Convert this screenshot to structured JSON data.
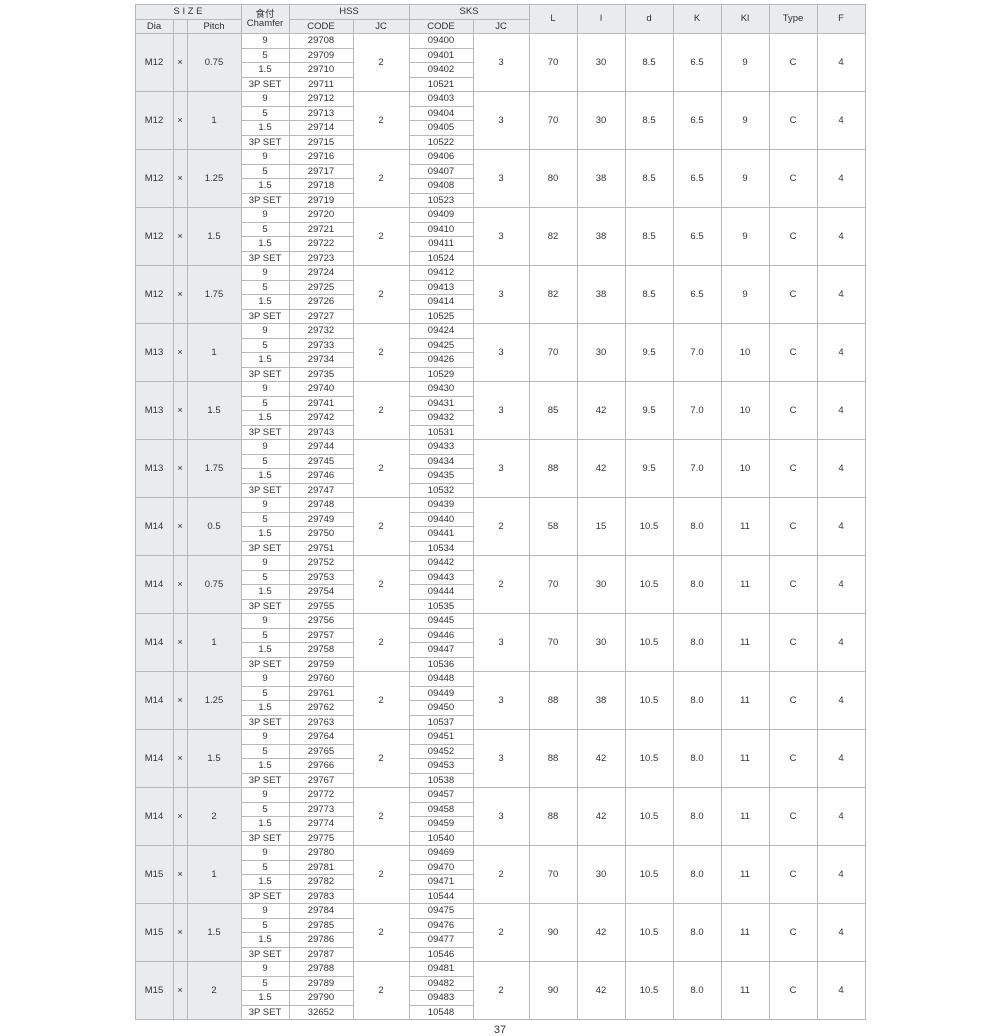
{
  "pageNumber": "37",
  "headers": {
    "size": "S  I  Z  E",
    "dia": "Dia",
    "pitch": "Pitch",
    "chamfer": "食付 Chamfer",
    "hss": "HSS",
    "sks": "SKS",
    "code": "CODE",
    "jc": "JC",
    "L": "L",
    "l": "l",
    "d": "d",
    "K": "K",
    "Kl": "Kl",
    "Type": "Type",
    "F": "F"
  },
  "chamferLabels": [
    "9",
    "5",
    "1.5",
    "3P SET"
  ],
  "groups": [
    {
      "dia": "M12",
      "x": "×",
      "pitch": "0.75",
      "hss": [
        "29708",
        "29709",
        "29710",
        "29711"
      ],
      "hjc": "2",
      "sks": [
        "09400",
        "09401",
        "09402",
        "10521"
      ],
      "sjc": "3",
      "L": "70",
      "l": "30",
      "d": "8.5",
      "K": "6.5",
      "Kl": "9",
      "Type": "C",
      "F": "4"
    },
    {
      "dia": "M12",
      "x": "×",
      "pitch": "1",
      "hss": [
        "29712",
        "29713",
        "29714",
        "29715"
      ],
      "hjc": "2",
      "sks": [
        "09403",
        "09404",
        "09405",
        "10522"
      ],
      "sjc": "3",
      "L": "70",
      "l": "30",
      "d": "8.5",
      "K": "6.5",
      "Kl": "9",
      "Type": "C",
      "F": "4"
    },
    {
      "dia": "M12",
      "x": "×",
      "pitch": "1.25",
      "hss": [
        "29716",
        "29717",
        "29718",
        "29719"
      ],
      "hjc": "2",
      "sks": [
        "09406",
        "09407",
        "09408",
        "10523"
      ],
      "sjc": "3",
      "L": "80",
      "l": "38",
      "d": "8.5",
      "K": "6.5",
      "Kl": "9",
      "Type": "C",
      "F": "4"
    },
    {
      "dia": "M12",
      "x": "×",
      "pitch": "1.5",
      "hss": [
        "29720",
        "29721",
        "29722",
        "29723"
      ],
      "hjc": "2",
      "sks": [
        "09409",
        "09410",
        "09411",
        "10524"
      ],
      "sjc": "3",
      "L": "82",
      "l": "38",
      "d": "8.5",
      "K": "6.5",
      "Kl": "9",
      "Type": "C",
      "F": "4"
    },
    {
      "dia": "M12",
      "x": "×",
      "pitch": "1.75",
      "hss": [
        "29724",
        "29725",
        "29726",
        "29727"
      ],
      "hjc": "2",
      "sks": [
        "09412",
        "09413",
        "09414",
        "10525"
      ],
      "sjc": "3",
      "L": "82",
      "l": "38",
      "d": "8.5",
      "K": "6.5",
      "Kl": "9",
      "Type": "C",
      "F": "4"
    },
    {
      "dia": "M13",
      "x": "×",
      "pitch": "1",
      "hss": [
        "29732",
        "29733",
        "29734",
        "29735"
      ],
      "hjc": "2",
      "sks": [
        "09424",
        "09425",
        "09426",
        "10529"
      ],
      "sjc": "3",
      "L": "70",
      "l": "30",
      "d": "9.5",
      "K": "7.0",
      "Kl": "10",
      "Type": "C",
      "F": "4"
    },
    {
      "dia": "M13",
      "x": "×",
      "pitch": "1.5",
      "hss": [
        "29740",
        "29741",
        "29742",
        "29743"
      ],
      "hjc": "2",
      "sks": [
        "09430",
        "09431",
        "09432",
        "10531"
      ],
      "sjc": "3",
      "L": "85",
      "l": "42",
      "d": "9.5",
      "K": "7.0",
      "Kl": "10",
      "Type": "C",
      "F": "4"
    },
    {
      "dia": "M13",
      "x": "×",
      "pitch": "1.75",
      "hss": [
        "29744",
        "29745",
        "29746",
        "29747"
      ],
      "hjc": "2",
      "sks": [
        "09433",
        "09434",
        "09435",
        "10532"
      ],
      "sjc": "3",
      "L": "88",
      "l": "42",
      "d": "9.5",
      "K": "7.0",
      "Kl": "10",
      "Type": "C",
      "F": "4"
    },
    {
      "dia": "M14",
      "x": "×",
      "pitch": "0.5",
      "hss": [
        "29748",
        "29749",
        "29750",
        "29751"
      ],
      "hjc": "2",
      "sks": [
        "09439",
        "09440",
        "09441",
        "10534"
      ],
      "sjc": "2",
      "L": "58",
      "l": "15",
      "d": "10.5",
      "K": "8.0",
      "Kl": "11",
      "Type": "C",
      "F": "4"
    },
    {
      "dia": "M14",
      "x": "×",
      "pitch": "0.75",
      "hss": [
        "29752",
        "29753",
        "29754",
        "29755"
      ],
      "hjc": "2",
      "sks": [
        "09442",
        "09443",
        "09444",
        "10535"
      ],
      "sjc": "2",
      "L": "70",
      "l": "30",
      "d": "10.5",
      "K": "8.0",
      "Kl": "11",
      "Type": "C",
      "F": "4"
    },
    {
      "dia": "M14",
      "x": "×",
      "pitch": "1",
      "hss": [
        "29756",
        "29757",
        "29758",
        "29759"
      ],
      "hjc": "2",
      "sks": [
        "09445",
        "09446",
        "09447",
        "10536"
      ],
      "sjc": "3",
      "L": "70",
      "l": "30",
      "d": "10.5",
      "K": "8.0",
      "Kl": "11",
      "Type": "C",
      "F": "4"
    },
    {
      "dia": "M14",
      "x": "×",
      "pitch": "1.25",
      "hss": [
        "29760",
        "29761",
        "29762",
        "29763"
      ],
      "hjc": "2",
      "sks": [
        "09448",
        "09449",
        "09450",
        "10537"
      ],
      "sjc": "3",
      "L": "88",
      "l": "38",
      "d": "10.5",
      "K": "8.0",
      "Kl": "11",
      "Type": "C",
      "F": "4"
    },
    {
      "dia": "M14",
      "x": "×",
      "pitch": "1.5",
      "hss": [
        "29764",
        "29765",
        "29766",
        "29767"
      ],
      "hjc": "2",
      "sks": [
        "09451",
        "09452",
        "09453",
        "10538"
      ],
      "sjc": "3",
      "L": "88",
      "l": "42",
      "d": "10.5",
      "K": "8.0",
      "Kl": "11",
      "Type": "C",
      "F": "4"
    },
    {
      "dia": "M14",
      "x": "×",
      "pitch": "2",
      "hss": [
        "29772",
        "29773",
        "29774",
        "29775"
      ],
      "hjc": "2",
      "sks": [
        "09457",
        "09458",
        "09459",
        "10540"
      ],
      "sjc": "3",
      "L": "88",
      "l": "42",
      "d": "10.5",
      "K": "8.0",
      "Kl": "11",
      "Type": "C",
      "F": "4"
    },
    {
      "dia": "M15",
      "x": "×",
      "pitch": "1",
      "hss": [
        "29780",
        "29781",
        "29782",
        "29783"
      ],
      "hjc": "2",
      "sks": [
        "09469",
        "09470",
        "09471",
        "10544"
      ],
      "sjc": "2",
      "L": "70",
      "l": "30",
      "d": "10.5",
      "K": "8.0",
      "Kl": "11",
      "Type": "C",
      "F": "4"
    },
    {
      "dia": "M15",
      "x": "×",
      "pitch": "1.5",
      "hss": [
        "29784",
        "29785",
        "29786",
        "29787"
      ],
      "hjc": "2",
      "sks": [
        "09475",
        "09476",
        "09477",
        "10546"
      ],
      "sjc": "2",
      "L": "90",
      "l": "42",
      "d": "10.5",
      "K": "8.0",
      "Kl": "11",
      "Type": "C",
      "F": "4"
    },
    {
      "dia": "M15",
      "x": "×",
      "pitch": "2",
      "hss": [
        "29788",
        "29789",
        "29790",
        "32652"
      ],
      "hjc": "2",
      "sks": [
        "09481",
        "09482",
        "09483",
        "10548"
      ],
      "sjc": "2",
      "L": "90",
      "l": "42",
      "d": "10.5",
      "K": "8.0",
      "Kl": "11",
      "Type": "C",
      "F": "4"
    }
  ]
}
